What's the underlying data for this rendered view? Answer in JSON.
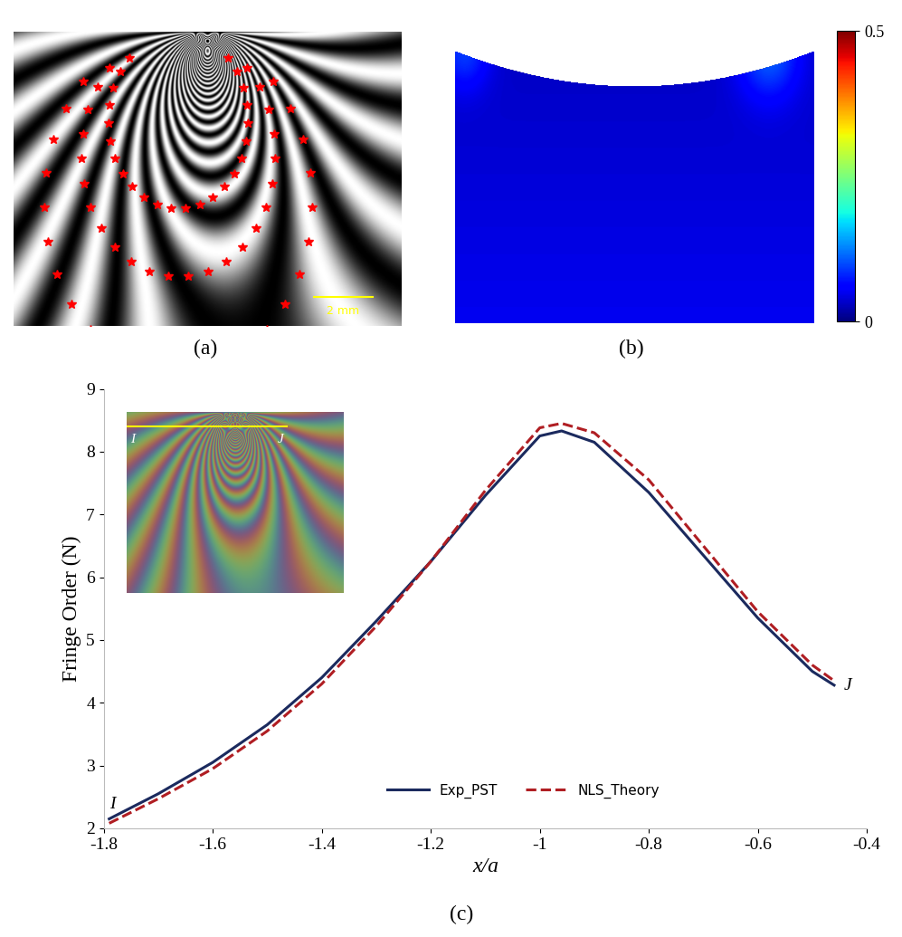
{
  "chart_data": [
    {
      "type": "image",
      "panel_label": "(a)",
      "scale_bar": "2 mm"
    },
    {
      "type": "heatmap",
      "panel_label": "(b)",
      "colorbar": {
        "range": [
          0,
          0.5
        ],
        "ticks": [
          0,
          0.5
        ]
      }
    },
    {
      "type": "line",
      "panel_label": "(c)",
      "x_label": "x/a",
      "y_label": "Fringe Order (N)",
      "endpoint_labels": [
        "I",
        "J"
      ],
      "xlim": [
        -1.8,
        -0.4
      ],
      "xticks": [
        -1.8,
        -1.6,
        -1.4,
        -1.2,
        -1,
        -0.8,
        -0.6,
        -0.4
      ],
      "ylim": [
        2,
        9
      ],
      "yticks": [
        2,
        3,
        4,
        5,
        6,
        7,
        8,
        9
      ],
      "legend": "lower center",
      "series": [
        {
          "name": "Exp_PST",
          "color": "#1b2a5e",
          "line_style": "solid",
          "x": [
            -1.79,
            -1.7,
            -1.6,
            -1.5,
            -1.4,
            -1.3,
            -1.2,
            -1.1,
            -1.0,
            -0.96,
            -0.9,
            -0.8,
            -0.7,
            -0.6,
            -0.5,
            -0.46
          ],
          "values": [
            2.15,
            2.55,
            3.05,
            3.65,
            4.4,
            5.3,
            6.25,
            7.3,
            8.25,
            8.33,
            8.15,
            7.35,
            6.35,
            5.35,
            4.5,
            4.28
          ]
        },
        {
          "name": "NLS_Theory",
          "color": "#b01e23",
          "line_style": "dashed",
          "x": [
            -1.79,
            -1.7,
            -1.6,
            -1.5,
            -1.4,
            -1.3,
            -1.2,
            -1.1,
            -1.0,
            -0.96,
            -0.9,
            -0.8,
            -0.7,
            -0.6,
            -0.5,
            -0.46
          ],
          "values": [
            2.08,
            2.47,
            2.95,
            3.55,
            4.3,
            5.22,
            6.25,
            7.38,
            8.38,
            8.45,
            8.3,
            7.55,
            6.5,
            5.45,
            4.6,
            4.35
          ]
        }
      ]
    }
  ]
}
